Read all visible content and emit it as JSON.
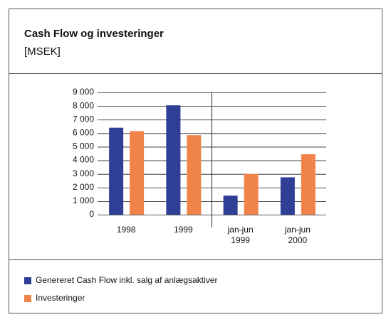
{
  "chart_data": {
    "type": "bar",
    "title": "Cash Flow og investeringer",
    "subtitle": "[MSEK]",
    "categories": [
      "1998",
      "1999",
      "jan-jun 1999",
      "jan-jun 2000"
    ],
    "series": [
      {
        "name": "Genereret Cash Flow inkl. salg af anlægsaktiver",
        "color": "#2e3f95",
        "values": [
          6400,
          8050,
          1400,
          2750
        ]
      },
      {
        "name": "Investeringer",
        "color": "#f0834a",
        "values": [
          6150,
          5850,
          3000,
          4450
        ]
      }
    ],
    "ylim": [
      0,
      9000
    ],
    "yticks": [
      0,
      {
        "value": 1000,
        "label": "1 000"
      },
      {
        "value": 2000,
        "label": "2 000"
      },
      {
        "value": 3000,
        "label": "3 000"
      },
      {
        "value": 4000,
        "label": "4 000"
      },
      {
        "value": 5000,
        "label": "5 000"
      },
      {
        "value": 6000,
        "label": "6 000"
      },
      {
        "value": 7000,
        "label": "7 000"
      },
      {
        "value": 8000,
        "label": "8 000"
      },
      {
        "value": 9000,
        "label": "9 000"
      }
    ],
    "grid": true,
    "legend": "bottom"
  }
}
